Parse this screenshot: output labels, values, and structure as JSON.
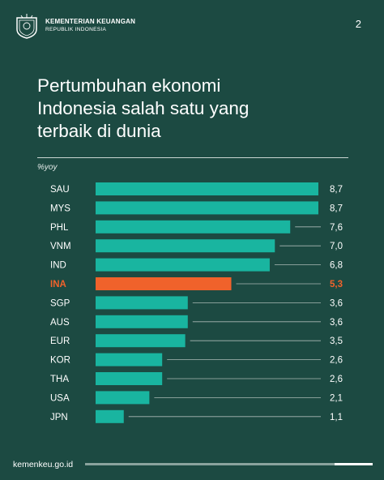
{
  "header": {
    "org_name": "KEMENTERIAN KEUANGAN",
    "org_sub": "REPUBLIK INDONESIA",
    "page_number": "2"
  },
  "title_lines": [
    "Pertumbuhan ekonomi",
    "Indonesia salah satu yang",
    "terbaik di dunia"
  ],
  "footer": {
    "url": "kemenkeu.go.id"
  },
  "colors": {
    "background": "#1c4a42",
    "bar": "#19b5a0",
    "highlight": "#f0622b",
    "text": "#ffffff"
  },
  "chart_data": {
    "type": "bar",
    "orientation": "horizontal",
    "unit_label": "%yoy",
    "categories": [
      "SAU",
      "MYS",
      "PHL",
      "VNM",
      "IND",
      "INA",
      "SGP",
      "AUS",
      "EUR",
      "KOR",
      "THA",
      "USA",
      "JPN"
    ],
    "values": [
      8.7,
      8.7,
      7.6,
      7.0,
      6.8,
      5.3,
      3.6,
      3.6,
      3.5,
      2.6,
      2.6,
      2.1,
      1.1
    ],
    "value_labels": [
      "8,7",
      "8,7",
      "7,6",
      "7,0",
      "6,8",
      "5,3",
      "3,6",
      "3,6",
      "3,5",
      "2,6",
      "2,6",
      "2,1",
      "1,1"
    ],
    "highlight": "INA",
    "xlim": [
      0,
      8.7
    ],
    "grid": false,
    "legend": "none"
  }
}
